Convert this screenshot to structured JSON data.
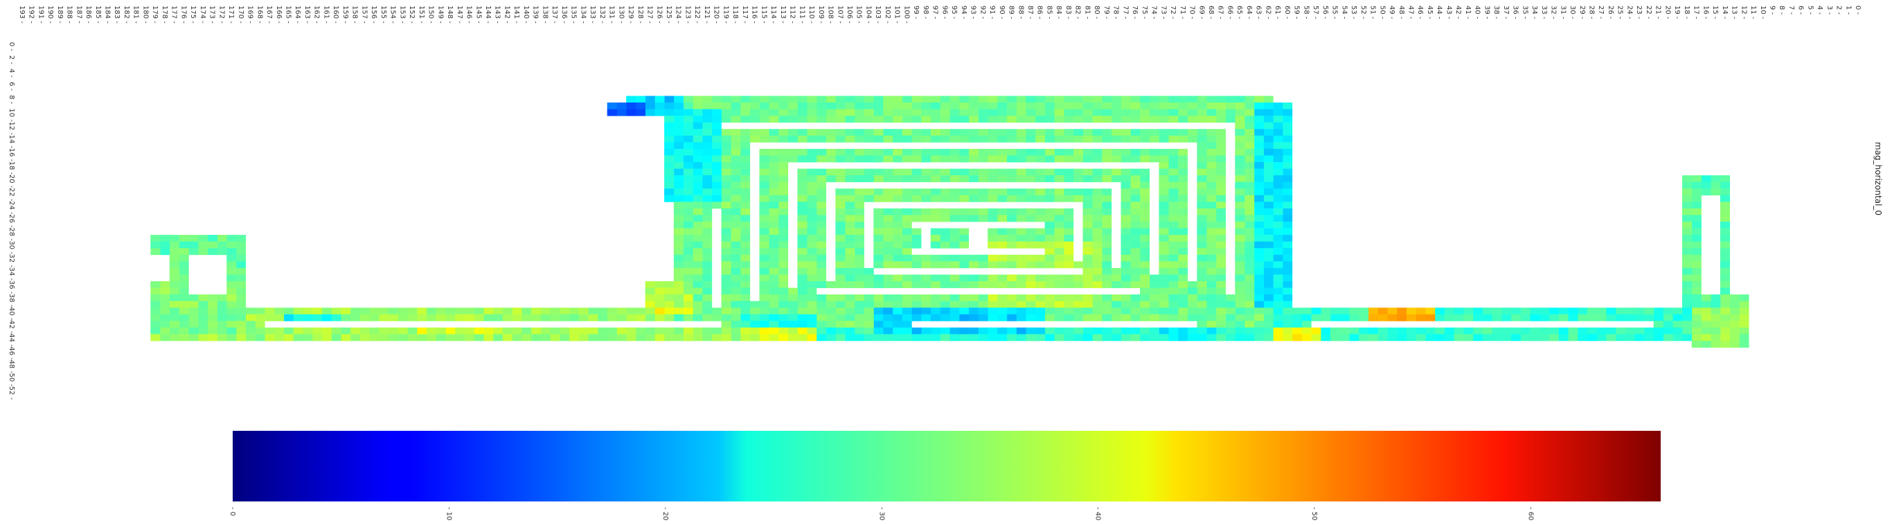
{
  "chart_data": {
    "type": "heatmap",
    "title": "mag_horizontal_0",
    "colormap": "jet",
    "x_ticks": [
      "0",
      "1",
      "2",
      "3",
      "4",
      "5",
      "6",
      "7",
      "8",
      "9",
      "10",
      "11",
      "12",
      "13",
      "14",
      "15",
      "16",
      "17",
      "18",
      "19",
      "20",
      "21",
      "22",
      "23",
      "24",
      "25",
      "26",
      "27",
      "28",
      "29",
      "30",
      "31",
      "32",
      "33",
      "34",
      "35",
      "36",
      "37",
      "38",
      "39",
      "40",
      "41",
      "42",
      "43",
      "44",
      "45",
      "46",
      "47",
      "48",
      "49",
      "50",
      "51",
      "52",
      "53",
      "54",
      "55",
      "56",
      "57",
      "58",
      "59",
      "60",
      "61",
      "62",
      "63",
      "64",
      "65",
      "66",
      "67",
      "68",
      "69",
      "70",
      "71",
      "72",
      "73",
      "74",
      "75",
      "76",
      "77",
      "78",
      "79",
      "80",
      "81",
      "82",
      "83",
      "84",
      "85",
      "86",
      "87",
      "88",
      "89",
      "90",
      "91",
      "92",
      "93",
      "94",
      "95",
      "96",
      "97",
      "98",
      "99",
      "100",
      "101",
      "102",
      "103",
      "104",
      "105",
      "106",
      "107",
      "108",
      "109",
      "110",
      "111",
      "112",
      "113",
      "114",
      "115",
      "116",
      "117",
      "118",
      "119",
      "120",
      "121",
      "122",
      "123",
      "124",
      "125",
      "126",
      "127",
      "128",
      "129",
      "130",
      "131",
      "132",
      "133",
      "134",
      "135",
      "136",
      "137",
      "138",
      "139",
      "140",
      "141",
      "142",
      "143",
      "144",
      "145",
      "146",
      "147",
      "148",
      "149",
      "150",
      "151",
      "152",
      "153",
      "154",
      "155",
      "156",
      "157",
      "158",
      "159",
      "160",
      "161",
      "162",
      "163",
      "164",
      "165",
      "166",
      "167",
      "168",
      "169",
      "170",
      "171",
      "172",
      "173",
      "174",
      "175",
      "176",
      "177",
      "178",
      "179",
      "180",
      "181",
      "182",
      "183",
      "184",
      "185",
      "186",
      "187",
      "188",
      "189",
      "190",
      "191",
      "192",
      "193"
    ],
    "y_ticks": [
      "0",
      "2",
      "4",
      "6",
      "8",
      "10",
      "12",
      "14",
      "16",
      "18",
      "20",
      "22",
      "24",
      "26",
      "28",
      "30",
      "32",
      "34",
      "36",
      "38",
      "40",
      "42",
      "44",
      "46",
      "48",
      "50",
      "52"
    ],
    "grid_cols": 194,
    "grid_rows": 54,
    "x_direction": "right-to-left",
    "colorbar": {
      "min": 0,
      "max": 66,
      "ticks": [
        "0",
        "10",
        "20",
        "30",
        "40",
        "50",
        "60"
      ],
      "tick_values": [
        0,
        10,
        20,
        30,
        40,
        50,
        60
      ]
    },
    "base_value": 32,
    "cell_value_note_levels": "values approx 15 (blue) to 62 (red)",
    "rects": [
      {
        "c0": 12,
        "c1": 18,
        "r0": 38,
        "r1": 46,
        "v": 34
      },
      {
        "c0": 18,
        "c1": 110,
        "r0": 40,
        "r1": 45,
        "v": 28
      },
      {
        "c0": 110,
        "c1": 180,
        "r0": 40,
        "r1": 45,
        "v": 35
      },
      {
        "c0": 170,
        "c1": 180,
        "r0": 36,
        "r1": 44,
        "v": 33
      },
      {
        "c0": 170,
        "c1": 178,
        "r0": 29,
        "r1": 36,
        "v": 31
      },
      {
        "c0": 176,
        "c1": 180,
        "r0": 29,
        "r1": 32,
        "v": 31
      },
      {
        "c0": 14,
        "c1": 19,
        "r0": 20,
        "r1": 40,
        "v": 31
      },
      {
        "c0": 14,
        "c1": 18,
        "r0": 20,
        "r1": 22,
        "v": 30
      },
      {
        "c0": 62,
        "c1": 125,
        "r0": 8,
        "r1": 43,
        "v": 32
      },
      {
        "c0": 60,
        "c1": 64,
        "r0": 9,
        "r1": 40,
        "v": 24
      },
      {
        "c0": 124,
        "c1": 130,
        "r0": 8,
        "r1": 11,
        "v": 22
      },
      {
        "c0": 128,
        "c1": 132,
        "r0": 9,
        "r1": 11,
        "v": 14
      },
      {
        "c0": 120,
        "c1": 126,
        "r0": 10,
        "r1": 24,
        "v": 25
      },
      {
        "c0": 80,
        "c1": 92,
        "r0": 30,
        "r1": 40,
        "v": 36
      },
      {
        "c0": 123,
        "c1": 127,
        "r0": 38,
        "r1": 41,
        "v": 40
      },
      {
        "c0": 86,
        "c1": 104,
        "r0": 40,
        "r1": 44,
        "v": 22
      },
      {
        "c0": 45,
        "c1": 52,
        "r0": 40,
        "r1": 42,
        "v": 46
      },
      {
        "c0": 57,
        "c1": 62,
        "r0": 43,
        "r1": 45,
        "v": 41
      },
      {
        "c0": 68,
        "c1": 74,
        "r0": 43,
        "r1": 45,
        "v": 25
      },
      {
        "c0": 110,
        "c1": 118,
        "r0": 43,
        "r1": 45,
        "v": 39
      },
      {
        "c0": 124,
        "c1": 128,
        "r0": 36,
        "r1": 40,
        "v": 37
      },
      {
        "c0": 144,
        "c1": 152,
        "r0": 42,
        "r1": 44,
        "v": 39
      },
      {
        "c0": 110,
        "c1": 118,
        "r0": 41,
        "r1": 43,
        "v": 26
      },
      {
        "c0": 160,
        "c1": 166,
        "r0": 41,
        "r1": 43,
        "v": 25
      }
    ],
    "holes": [
      {
        "c0": 22,
        "c1": 58,
        "r0": 42,
        "r1": 43
      },
      {
        "c0": 70,
        "c1": 100,
        "r0": 42,
        "r1": 43
      },
      {
        "c0": 120,
        "c1": 168,
        "r0": 42,
        "r1": 43
      },
      {
        "c0": 172,
        "c1": 176,
        "r0": 32,
        "r1": 38
      },
      {
        "c0": 15,
        "c1": 17,
        "r0": 23,
        "r1": 38
      },
      {
        "c0": 66,
        "c1": 120,
        "r0": 12,
        "r1": 13
      },
      {
        "c0": 70,
        "c1": 116,
        "r0": 15,
        "r1": 16
      },
      {
        "c0": 74,
        "c1": 112,
        "r0": 18,
        "r1": 19
      },
      {
        "c0": 78,
        "c1": 108,
        "r0": 21,
        "r1": 22
      },
      {
        "c0": 82,
        "c1": 104,
        "r0": 24,
        "r1": 25
      },
      {
        "c0": 86,
        "c1": 100,
        "r0": 27,
        "r1": 28
      },
      {
        "c0": 86,
        "c1": 100,
        "r0": 31,
        "r1": 32
      },
      {
        "c0": 82,
        "c1": 104,
        "r0": 34,
        "r1": 35
      },
      {
        "c0": 76,
        "c1": 110,
        "r0": 37,
        "r1": 38
      },
      {
        "c0": 66,
        "c1": 67,
        "r0": 12,
        "r1": 38
      },
      {
        "c0": 70,
        "c1": 71,
        "r0": 15,
        "r1": 36
      },
      {
        "c0": 74,
        "c1": 75,
        "r0": 18,
        "r1": 35
      },
      {
        "c0": 78,
        "c1": 79,
        "r0": 21,
        "r1": 34
      },
      {
        "c0": 82,
        "c1": 83,
        "r0": 24,
        "r1": 33
      },
      {
        "c0": 104,
        "c1": 105,
        "r0": 24,
        "r1": 34
      },
      {
        "c0": 108,
        "c1": 109,
        "r0": 21,
        "r1": 36
      },
      {
        "c0": 112,
        "c1": 113,
        "r0": 18,
        "r1": 37
      },
      {
        "c0": 116,
        "c1": 117,
        "r0": 15,
        "r1": 39
      },
      {
        "c0": 120,
        "c1": 121,
        "r0": 25,
        "r1": 40
      },
      {
        "c0": 92,
        "c1": 94,
        "r0": 27,
        "r1": 32
      },
      {
        "c0": 98,
        "c1": 99,
        "r0": 28,
        "r1": 31
      }
    ]
  }
}
